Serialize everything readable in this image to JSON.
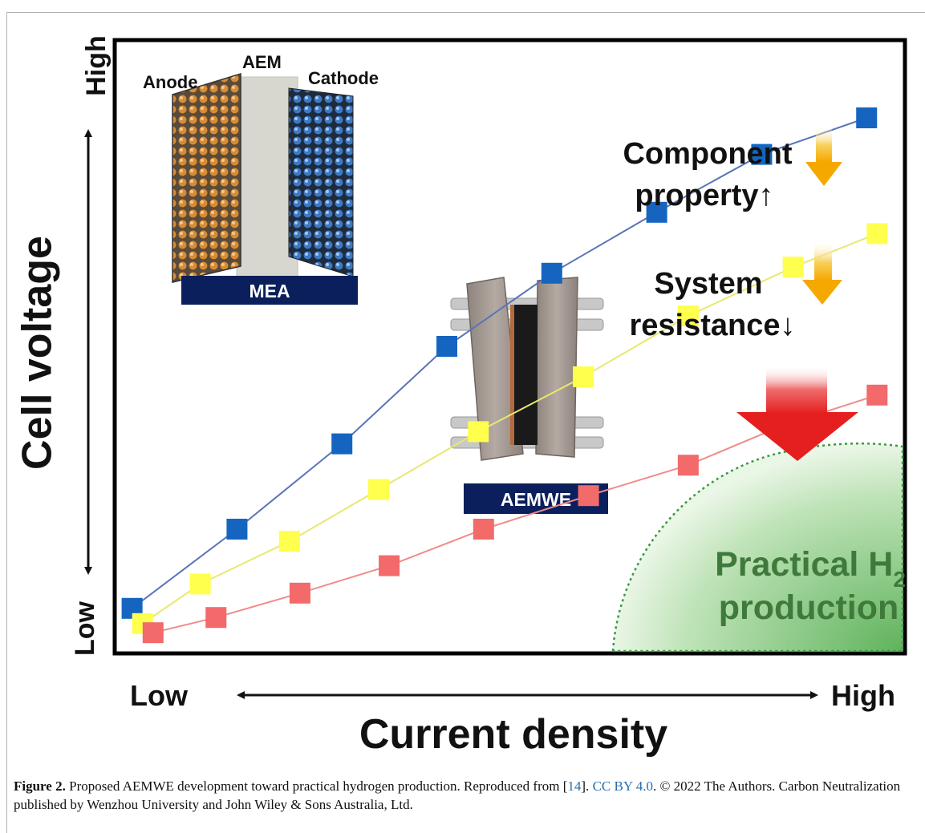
{
  "chart_data": {
    "type": "line",
    "xlabel": "Current density",
    "ylabel": "Cell voltage",
    "x_ticks": {
      "low": "Low",
      "high": "High"
    },
    "y_ticks": {
      "low": "Low",
      "high": "High"
    },
    "x": [
      1,
      2,
      3,
      4,
      5,
      6,
      7,
      8
    ],
    "xlim": [
      0.85,
      8.35
    ],
    "ylim": [
      0,
      10
    ],
    "series": [
      {
        "color": "#1565c0",
        "line_color": "#5a74b8",
        "values": [
          0.7,
          2.0,
          3.4,
          5.0,
          6.2,
          7.2,
          8.15,
          8.75
        ]
      },
      {
        "color": "#ffff4d",
        "line_color": "#e8e870",
        "values": [
          0.45,
          1.1,
          1.8,
          2.65,
          3.6,
          4.5,
          5.5,
          6.3,
          6.85
        ],
        "x": [
          1.1,
          1.65,
          2.5,
          3.35,
          4.3,
          5.3,
          6.3,
          7.3,
          8.1
        ]
      },
      {
        "color": "#f26a6a",
        "line_color": "#f08b8b",
        "values": [
          0.3,
          0.55,
          0.95,
          1.4,
          2.0,
          2.55,
          3.05,
          3.7,
          4.2
        ],
        "x": [
          1.2,
          1.8,
          2.6,
          3.45,
          4.35,
          5.35,
          6.3,
          7.2,
          8.1
        ]
      }
    ],
    "annotations": {
      "component": [
        "Component",
        "property↑"
      ],
      "system": [
        "System",
        "resistance↓"
      ],
      "practical": "Practical H",
      "practical_sub": "2",
      "practical_line2": "production",
      "mea_labels": {
        "anode": "Anode",
        "aem": "AEM",
        "cathode": "Cathode",
        "banner": "MEA"
      },
      "aemwe_banner": "AEMWE"
    },
    "colors": {
      "arrow_orange": "#f5a800",
      "arrow_red": "#e51f1f",
      "banner": "#0b1f5c",
      "region_green": "#7cc77a"
    }
  },
  "caption": {
    "label": "Figure 2.",
    "text1": " Proposed AEMWE development toward practical hydrogen production. Reproduced from [",
    "ref": "14",
    "text2": "]. ",
    "license": "CC BY 4.0",
    "text3": ". © 2022 The Authors. Carbon Neutralization published by Wenzhou University and John Wiley & Sons Australia, Ltd."
  }
}
